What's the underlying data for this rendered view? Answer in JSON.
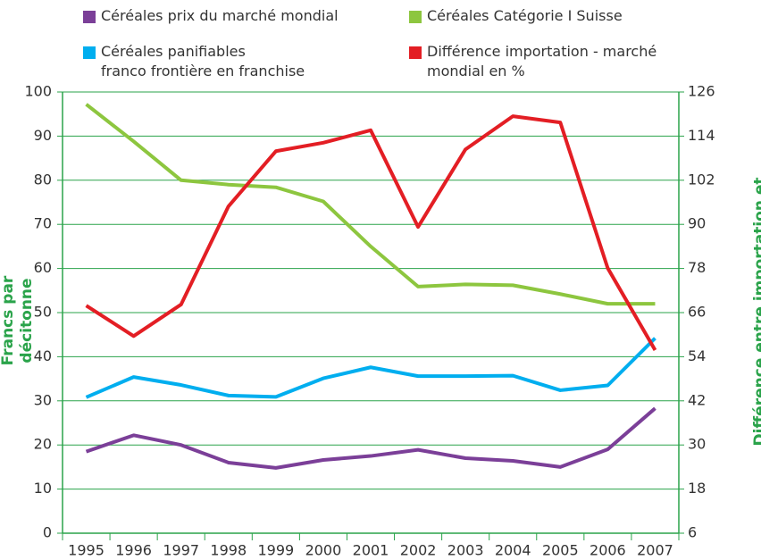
{
  "chart_data": {
    "type": "line",
    "categories": [
      "1995",
      "1996",
      "1997",
      "1998",
      "1999",
      "2000",
      "2001",
      "2002",
      "2003",
      "2004",
      "2005",
      "2006",
      "2007"
    ],
    "series": [
      {
        "name": "Céréales prix du marché mondial",
        "color": "#7b3f98",
        "values": [
          18.5,
          22.2,
          20,
          16,
          14.8,
          16.6,
          17.5,
          18.9,
          17,
          16.4,
          15,
          19,
          28.3
        ]
      },
      {
        "name": "Céréales Catégorie I Suisse",
        "color": "#8dc63f",
        "values": [
          97.2,
          88.8,
          80,
          79,
          78.4,
          75.2,
          65,
          55.9,
          56.4,
          56.2,
          54.2,
          52,
          52
        ]
      },
      {
        "name": "Céréales panifiables\nfranco frontière en franchise",
        "color": "#00aeef",
        "values": [
          30.8,
          35.4,
          33.6,
          31.2,
          30.9,
          35.1,
          37.6,
          35.6,
          35.6,
          35.7,
          32.4,
          33.5,
          44.2
        ]
      },
      {
        "name": "Différence importation - marché\nmondial en %",
        "color": "#e31e24",
        "axis": "y2",
        "values": [
          67.9,
          59.6,
          68.2,
          94.9,
          109.9,
          112.2,
          115.6,
          89.3,
          110.4,
          119.4,
          117.7,
          78.1,
          55.8
        ]
      }
    ],
    "ylabel": "Francs par décitonne",
    "y2label": "Différence entre importation et\nmarché mondial en %",
    "ylim": [
      0,
      100
    ],
    "yticks": [
      0,
      10,
      20,
      30,
      40,
      50,
      60,
      70,
      80,
      90,
      100
    ],
    "y2lim": [
      6,
      126
    ],
    "y2ticks": [
      6,
      18,
      30,
      42,
      54,
      66,
      78,
      90,
      102,
      114,
      126
    ],
    "grid": true
  }
}
